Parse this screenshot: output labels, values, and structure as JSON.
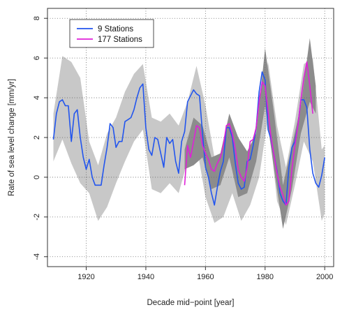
{
  "chart_data": {
    "type": "line",
    "title": "",
    "xlabel": "Decade mid−point [year]",
    "ylabel": "Rate of sea level change [mm/yr]",
    "xlim": [
      1907,
      2003
    ],
    "ylim": [
      -4.5,
      8.5
    ],
    "xticks": [
      1920,
      1940,
      1960,
      1980,
      2000
    ],
    "yticks": [
      -4,
      -2,
      0,
      2,
      4,
      6,
      8
    ],
    "grid": true,
    "legend_position": "top-left",
    "colors": {
      "nine_stations": "#2255ee",
      "one77_stations": "#e020d8",
      "band_9": "#c8c8c8",
      "band_177": "#8c8c8c"
    },
    "series": [
      {
        "name": "9 Stations",
        "color": "#2255ee",
        "x": [
          1909,
          1910,
          1911,
          1912,
          1913,
          1914,
          1915,
          1916,
          1917,
          1918,
          1919,
          1920,
          1921,
          1922,
          1923,
          1924,
          1925,
          1926,
          1927,
          1928,
          1929,
          1930,
          1931,
          1932,
          1933,
          1934,
          1935,
          1936,
          1937,
          1938,
          1939,
          1940,
          1941,
          1942,
          1943,
          1944,
          1945,
          1946,
          1947,
          1948,
          1949,
          1950,
          1951,
          1952,
          1953,
          1954,
          1955,
          1956,
          1957,
          1958,
          1959,
          1960,
          1961,
          1962,
          1963,
          1964,
          1965,
          1966,
          1967,
          1968,
          1969,
          1970,
          1971,
          1972,
          1973,
          1974,
          1975,
          1976,
          1977,
          1978,
          1979,
          1980,
          1981,
          1982,
          1983,
          1984,
          1985,
          1986,
          1987,
          1988,
          1989,
          1990,
          1991,
          1992,
          1993,
          1994,
          1995,
          1996,
          1997,
          1998,
          1999,
          2000
        ],
        "values": [
          1.9,
          3.2,
          3.8,
          3.9,
          3.6,
          3.6,
          1.8,
          3.2,
          3.4,
          2.0,
          1.0,
          0.4,
          0.9,
          0.0,
          -0.4,
          -0.4,
          -0.4,
          0.6,
          1.5,
          2.7,
          2.5,
          1.5,
          1.8,
          1.8,
          2.8,
          2.9,
          3.0,
          3.4,
          4.0,
          4.5,
          4.7,
          2.5,
          1.4,
          1.1,
          2.0,
          1.9,
          1.2,
          0.5,
          2.0,
          1.7,
          1.9,
          0.8,
          0.2,
          1.8,
          2.3,
          3.8,
          4.1,
          4.4,
          4.2,
          4.1,
          2.2,
          0.5,
          0.0,
          -0.8,
          -1.4,
          -0.5,
          0.3,
          0.8,
          2.5,
          2.5,
          2.0,
          0.7,
          -0.3,
          -0.6,
          -0.5,
          0.8,
          0.9,
          1.6,
          2.5,
          4.3,
          5.3,
          4.9,
          2.4,
          1.9,
          1.1,
          0.3,
          -0.8,
          -1.2,
          -1.4,
          0.5,
          1.5,
          1.8,
          2.6,
          3.9,
          3.9,
          3.5,
          1.4,
          0.2,
          -0.3,
          -0.5,
          0.1,
          1.0
        ]
      },
      {
        "name": "177 Stations",
        "color": "#e020d8",
        "x": [
          1953,
          1954,
          1955,
          1956,
          1957,
          1958,
          1959,
          1960,
          1961,
          1962,
          1963,
          1964,
          1965,
          1966,
          1967,
          1968,
          1969,
          1970,
          1971,
          1972,
          1973,
          1974,
          1975,
          1976,
          1977,
          1978,
          1979,
          1980,
          1981,
          1982,
          1983,
          1984,
          1985,
          1986,
          1987,
          1988,
          1989,
          1990,
          1991,
          1992,
          1993,
          1994,
          1995,
          1996
        ],
        "values": [
          -0.4,
          1.6,
          1.0,
          1.8,
          2.6,
          2.5,
          1.6,
          1.2,
          0.9,
          0.4,
          0.3,
          0.7,
          1.0,
          1.6,
          2.6,
          2.7,
          2.2,
          1.4,
          0.4,
          0.0,
          -0.2,
          0.5,
          1.8,
          1.9,
          2.5,
          3.8,
          4.8,
          4.6,
          3.3,
          2.0,
          1.1,
          0.2,
          -0.5,
          -0.9,
          -1.4,
          -1.2,
          0.4,
          1.6,
          2.6,
          3.9,
          5.0,
          5.8,
          4.6,
          3.2
        ]
      }
    ],
    "bands": [
      {
        "for": "9 Stations",
        "x": [
          1909,
          1912,
          1915,
          1918,
          1921,
          1924,
          1927,
          1930,
          1933,
          1936,
          1939,
          1942,
          1945,
          1948,
          1951,
          1954,
          1957,
          1960,
          1963,
          1966,
          1969,
          1972,
          1975,
          1978,
          1981,
          1984,
          1987,
          1990,
          1993,
          1996,
          1999,
          2000
        ],
        "upper": [
          3.2,
          6.1,
          5.8,
          5.0,
          1.8,
          0.6,
          2.2,
          3.0,
          4.3,
          5.2,
          5.7,
          3.0,
          2.8,
          3.2,
          2.6,
          3.8,
          5.6,
          3.6,
          1.0,
          1.3,
          2.5,
          1.6,
          0.8,
          3.5,
          5.8,
          2.6,
          0.5,
          2.8,
          5.7,
          6.0,
          1.4,
          1.6
        ],
        "lower": [
          0.8,
          1.9,
          0.7,
          -0.3,
          -0.8,
          -2.2,
          -1.5,
          -0.3,
          0.8,
          1.8,
          2.4,
          -0.6,
          -0.8,
          -0.3,
          -0.8,
          0.8,
          1.6,
          -1.0,
          -2.3,
          -2.0,
          -0.8,
          -2.2,
          -1.4,
          0.0,
          3.0,
          -1.2,
          -2.4,
          -0.4,
          1.8,
          0.8,
          -2.2,
          -1.8
        ]
      },
      {
        "for": "177 Stations",
        "x": [
          1953,
          1956,
          1959,
          1962,
          1965,
          1968,
          1971,
          1974,
          1977,
          1980,
          1983,
          1986,
          1989,
          1992,
          1995,
          1997
        ],
        "upper": [
          1.4,
          3.0,
          2.6,
          1.0,
          1.2,
          3.2,
          2.0,
          1.3,
          2.2,
          6.5,
          3.2,
          -0.4,
          1.6,
          3.6,
          7.0,
          4.6
        ],
        "lower": [
          0.4,
          0.6,
          1.0,
          -0.6,
          -0.4,
          1.0,
          -1.0,
          -0.8,
          0.8,
          3.6,
          0.4,
          -2.6,
          -0.6,
          2.2,
          3.8,
          3.2
        ]
      }
    ]
  }
}
